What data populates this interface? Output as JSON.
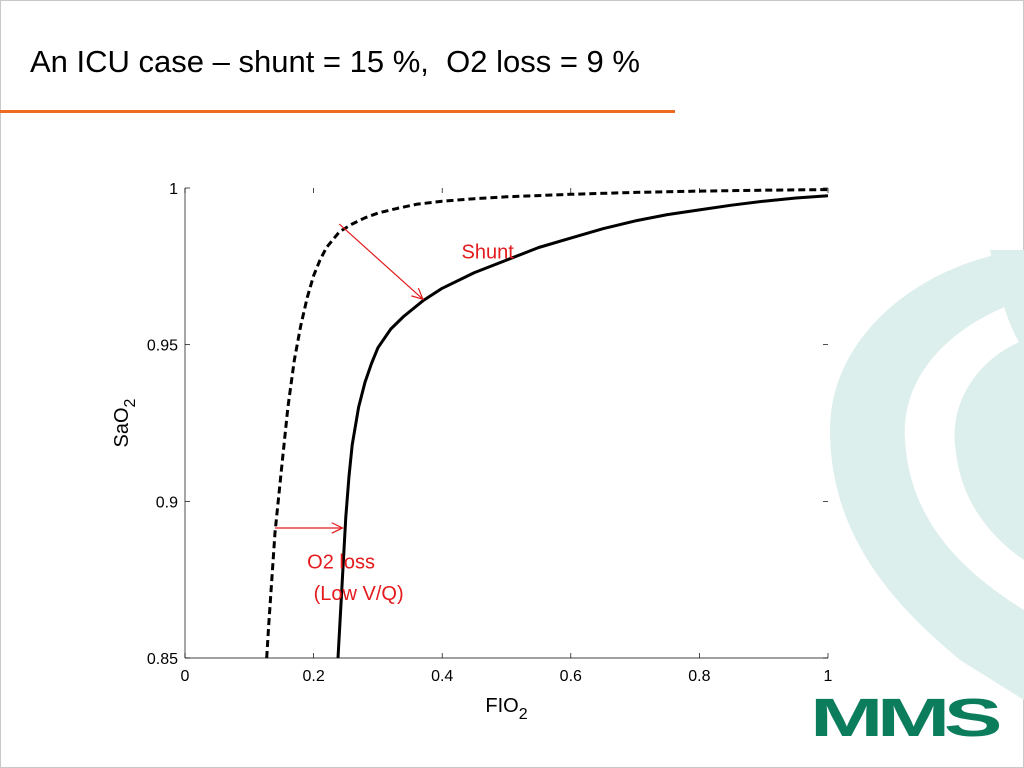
{
  "slide": {
    "title": "An ICU case – shunt = 15 %,  O2 loss = 9 %",
    "accent_color": "#ec6b1e",
    "logo_text": "MMS",
    "logo_color": "#0c7d5c",
    "decor_color": "#dcefec"
  },
  "chart_data": {
    "type": "line",
    "title": "",
    "xlabel": "FIO2",
    "ylabel": "SaO2",
    "xlim": [
      0,
      1
    ],
    "ylim": [
      0.85,
      1
    ],
    "x_ticks": [
      0,
      0.2,
      0.4,
      0.6,
      0.8,
      1
    ],
    "x_tick_labels": [
      "0",
      "0.2",
      "0.4",
      "0.6",
      "0.8",
      "1"
    ],
    "y_ticks": [
      0.85,
      0.9,
      0.95,
      1
    ],
    "y_tick_labels": [
      "0.85",
      "0.9",
      "0.95",
      "1"
    ],
    "grid": false,
    "legend": "none",
    "series": [
      {
        "style": "dashed",
        "color": "#000000",
        "x": [
          0.127,
          0.13,
          0.135,
          0.14,
          0.15,
          0.16,
          0.17,
          0.18,
          0.19,
          0.2,
          0.21,
          0.22,
          0.24,
          0.26,
          0.28,
          0.3,
          0.33,
          0.36,
          0.4,
          0.45,
          0.5,
          0.6,
          0.7,
          0.8,
          0.9,
          1.0
        ],
        "y": [
          0.85,
          0.86,
          0.875,
          0.89,
          0.91,
          0.93,
          0.945,
          0.956,
          0.965,
          0.972,
          0.977,
          0.981,
          0.986,
          0.9885,
          0.9905,
          0.992,
          0.9935,
          0.9948,
          0.9958,
          0.9966,
          0.9972,
          0.998,
          0.9986,
          0.999,
          0.9993,
          0.9995
        ]
      },
      {
        "style": "solid",
        "color": "#000000",
        "x": [
          0.238,
          0.242,
          0.246,
          0.25,
          0.255,
          0.26,
          0.27,
          0.28,
          0.29,
          0.3,
          0.32,
          0.34,
          0.37,
          0.4,
          0.45,
          0.5,
          0.55,
          0.6,
          0.65,
          0.7,
          0.75,
          0.8,
          0.85,
          0.9,
          0.95,
          1.0
        ],
        "y": [
          0.85,
          0.865,
          0.88,
          0.895,
          0.908,
          0.918,
          0.93,
          0.938,
          0.944,
          0.949,
          0.955,
          0.959,
          0.964,
          0.968,
          0.973,
          0.977,
          0.981,
          0.984,
          0.987,
          0.9895,
          0.9915,
          0.993,
          0.9945,
          0.9958,
          0.9968,
          0.9975
        ]
      }
    ],
    "annotations": [
      {
        "text": "Shunt",
        "color": "#e41a1c",
        "x": 0.43,
        "y": 0.9775
      },
      {
        "text": "O2 loss",
        "color": "#e41a1c",
        "x": 0.19,
        "y": 0.8785
      },
      {
        "text": "(Low V/Q)",
        "color": "#e41a1c",
        "x": 0.2,
        "y": 0.8685
      }
    ],
    "arrows": [
      {
        "color": "#e41a1c",
        "from": [
          0.24,
          0.9885
        ],
        "to": [
          0.37,
          0.9645
        ]
      },
      {
        "color": "#e41a1c",
        "from": [
          0.14,
          0.8915
        ],
        "to": [
          0.245,
          0.8915
        ]
      }
    ]
  }
}
